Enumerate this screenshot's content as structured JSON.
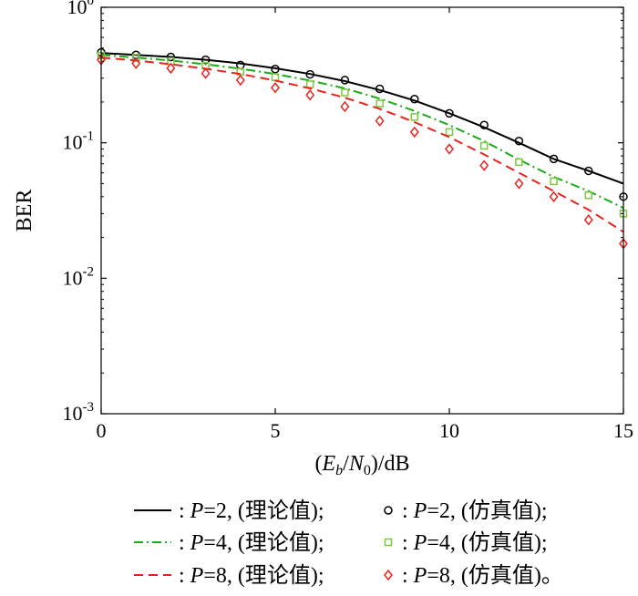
{
  "chart_data": {
    "type": "line",
    "title": "",
    "xlabel": {
      "open": "(",
      "e": "E",
      "e_sub": "b",
      "slash": "/",
      "n": "N",
      "n_sub": "0",
      "close": ")/dB"
    },
    "ylabel": "BER",
    "xlim": [
      0,
      15
    ],
    "ylim": [
      0.001,
      1
    ],
    "y_scale": "log",
    "grid": false,
    "x_ticks": [
      "0",
      "5",
      "10",
      "15"
    ],
    "y_ticks": [
      {
        "base": "10",
        "exp": "0"
      },
      {
        "base": "10",
        "exp": "-1"
      },
      {
        "base": "10",
        "exp": "-2"
      },
      {
        "base": "10",
        "exp": "-3"
      }
    ],
    "legend_position": "bottom",
    "series": [
      {
        "name": "P=2, (理论值)",
        "kind": "line",
        "color": "#000000",
        "dash": "solid",
        "x": [
          0,
          1,
          2,
          3,
          4,
          5,
          6,
          7,
          8,
          9,
          10,
          11,
          12,
          13,
          14,
          15
        ],
        "values": [
          0.46,
          0.445,
          0.43,
          0.41,
          0.385,
          0.355,
          0.322,
          0.285,
          0.245,
          0.205,
          0.165,
          0.13,
          0.1,
          0.076,
          0.062,
          0.05
        ]
      },
      {
        "name": "P=2, (仿真值)",
        "kind": "markers",
        "marker": "circle",
        "color": "#000000",
        "x": [
          0,
          1,
          2,
          3,
          4,
          5,
          6,
          7,
          8,
          9,
          10,
          11,
          12,
          13,
          14,
          15
        ],
        "values": [
          0.465,
          0.445,
          0.43,
          0.41,
          0.375,
          0.35,
          0.32,
          0.29,
          0.25,
          0.21,
          0.165,
          0.135,
          0.103,
          0.076,
          0.062,
          0.04
        ]
      },
      {
        "name": "P=4, (理论值)",
        "kind": "line",
        "color": "#1aab1a",
        "dash": "dashdot",
        "x": [
          0,
          1,
          2,
          3,
          4,
          5,
          6,
          7,
          8,
          9,
          10,
          11,
          12,
          13,
          14,
          15
        ],
        "values": [
          0.445,
          0.425,
          0.405,
          0.38,
          0.352,
          0.322,
          0.288,
          0.252,
          0.212,
          0.172,
          0.135,
          0.103,
          0.075,
          0.056,
          0.044,
          0.033
        ]
      },
      {
        "name": "P=4, (仿真值)",
        "kind": "markers",
        "marker": "square",
        "color": "#7cc840",
        "x": [
          0,
          1,
          2,
          3,
          4,
          5,
          6,
          7,
          8,
          9,
          10,
          11,
          12,
          13,
          14,
          15
        ],
        "values": [
          0.44,
          0.425,
          0.4,
          0.37,
          0.335,
          0.305,
          0.27,
          0.235,
          0.195,
          0.155,
          0.12,
          0.095,
          0.072,
          0.052,
          0.041,
          0.03
        ]
      },
      {
        "name": "P=8, (理论值)",
        "kind": "line",
        "color": "#e8221b",
        "dash": "dashed",
        "x": [
          0,
          1,
          2,
          3,
          4,
          5,
          6,
          7,
          8,
          9,
          10,
          11,
          12,
          13,
          14,
          15
        ],
        "values": [
          0.425,
          0.405,
          0.38,
          0.352,
          0.322,
          0.288,
          0.252,
          0.215,
          0.178,
          0.142,
          0.11,
          0.082,
          0.06,
          0.044,
          0.032,
          0.022
        ]
      },
      {
        "name": "P=8, (仿真值)",
        "kind": "markers",
        "marker": "diamond",
        "color": "#e8221b",
        "x": [
          0,
          1,
          2,
          3,
          4,
          5,
          6,
          7,
          8,
          9,
          10,
          11,
          12,
          13,
          14,
          15
        ],
        "values": [
          0.41,
          0.385,
          0.355,
          0.325,
          0.29,
          0.255,
          0.225,
          0.185,
          0.145,
          0.12,
          0.09,
          0.068,
          0.05,
          0.04,
          0.027,
          0.018
        ]
      }
    ],
    "legend": [
      [
        {
          "series": 0,
          "sep": ": ",
          "p": "P",
          "rest": "=2, (理论值);"
        },
        {
          "series": 1,
          "sep": ": ",
          "p": "P",
          "rest": "=2, (仿真值);"
        }
      ],
      [
        {
          "series": 2,
          "sep": ": ",
          "p": "P",
          "rest": "=4, (理论值);"
        },
        {
          "series": 3,
          "sep": ": ",
          "p": "P",
          "rest": "=4, (仿真值);"
        }
      ],
      [
        {
          "series": 4,
          "sep": ": ",
          "p": "P",
          "rest": "=8, (理论值);"
        },
        {
          "series": 5,
          "sep": ": ",
          "p": "P",
          "rest": "=8, (仿真值)。"
        }
      ]
    ]
  }
}
